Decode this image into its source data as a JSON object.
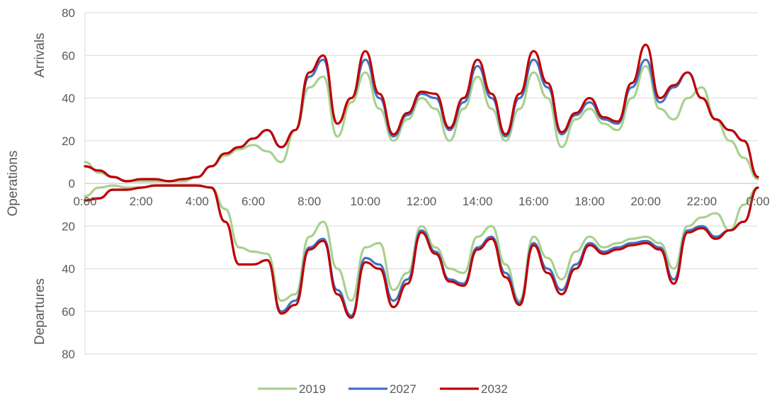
{
  "chart_data": {
    "type": "line",
    "title": "",
    "ylabel": "Operations",
    "ylabel_top": "Arrivals",
    "ylabel_bottom": "Departures",
    "xlabel": "",
    "x_ticks": [
      "0:00",
      "2:00",
      "4:00",
      "6:00",
      "8:00",
      "10:00",
      "12:00",
      "14:00",
      "16:00",
      "18:00",
      "20:00",
      "22:00",
      "0:00"
    ],
    "y_ticks": [
      "80",
      "60",
      "40",
      "20",
      "0",
      "20",
      "40",
      "60",
      "80"
    ],
    "ylim": [
      -80,
      80
    ],
    "x_hours": [
      0,
      0.5,
      1,
      1.5,
      2,
      2.5,
      3,
      3.5,
      4,
      4.5,
      5,
      5.5,
      6,
      6.5,
      7,
      7.5,
      8,
      8.5,
      9,
      9.5,
      10,
      10.5,
      11,
      11.5,
      12,
      12.5,
      13,
      13.5,
      14,
      14.5,
      15,
      15.5,
      16,
      16.5,
      17,
      17.5,
      18,
      18.5,
      19,
      19.5,
      20,
      20.5,
      21,
      21.5,
      22,
      22.5,
      23,
      23.5,
      24
    ],
    "series": [
      {
        "name": "2019",
        "color": "#a9d18e",
        "arrivals": [
          10,
          5,
          3,
          1,
          1,
          1,
          1,
          1,
          3,
          8,
          13,
          16,
          18,
          15,
          10,
          25,
          45,
          50,
          22,
          38,
          52,
          35,
          20,
          30,
          40,
          35,
          20,
          35,
          50,
          35,
          20,
          35,
          52,
          40,
          17,
          30,
          35,
          28,
          25,
          40,
          55,
          35,
          30,
          40,
          45,
          30,
          20,
          12,
          2
        ],
        "departures": [
          -6,
          -2,
          -1,
          -2,
          -2,
          -1,
          -1,
          -1,
          -1,
          -2,
          -12,
          -30,
          -32,
          -33,
          -55,
          -52,
          -25,
          -18,
          -40,
          -55,
          -30,
          -28,
          -50,
          -42,
          -20,
          -30,
          -40,
          -42,
          -25,
          -20,
          -38,
          -55,
          -25,
          -35,
          -45,
          -32,
          -25,
          -30,
          -28,
          -26,
          -25,
          -28,
          -40,
          -20,
          -16,
          -14,
          -22,
          -10,
          -2
        ]
      },
      {
        "name": "2027",
        "color": "#4472c4",
        "arrivals": [
          8,
          6,
          3,
          1,
          2,
          2,
          1,
          2,
          3,
          8,
          14,
          17,
          21,
          25,
          17,
          25,
          50,
          58,
          28,
          40,
          58,
          40,
          22,
          32,
          42,
          40,
          25,
          38,
          55,
          40,
          22,
          40,
          58,
          45,
          23,
          32,
          38,
          30,
          28,
          45,
          58,
          38,
          45,
          52,
          40,
          30,
          25,
          20,
          3
        ],
        "departures": [
          -8,
          -7,
          -3,
          -3,
          -2,
          -1,
          -1,
          -1,
          -1,
          -2,
          -18,
          -38,
          -38,
          -36,
          -60,
          -55,
          -30,
          -26,
          -50,
          -62,
          -35,
          -38,
          -55,
          -45,
          -22,
          -32,
          -45,
          -47,
          -30,
          -25,
          -42,
          -56,
          -28,
          -40,
          -50,
          -38,
          -28,
          -32,
          -30,
          -28,
          -27,
          -30,
          -45,
          -22,
          -20,
          -25,
          -22,
          -18,
          -2
        ]
      },
      {
        "name": "2032",
        "color": "#c00000",
        "arrivals": [
          8,
          6,
          3,
          1,
          2,
          2,
          1,
          2,
          3,
          8,
          14,
          17,
          21,
          25,
          17,
          25,
          52,
          60,
          28,
          40,
          62,
          42,
          23,
          33,
          43,
          42,
          26,
          40,
          58,
          42,
          23,
          42,
          62,
          47,
          24,
          33,
          40,
          31,
          29,
          47,
          65,
          40,
          46,
          52,
          40,
          30,
          25,
          20,
          3
        ],
        "departures": [
          -8,
          -7,
          -3,
          -3,
          -2,
          -1,
          -1,
          -1,
          -1,
          -2,
          -18,
          -38,
          -38,
          -36,
          -61,
          -57,
          -31,
          -27,
          -52,
          -63,
          -37,
          -40,
          -58,
          -47,
          -23,
          -33,
          -46,
          -48,
          -31,
          -26,
          -44,
          -57,
          -29,
          -42,
          -52,
          -40,
          -29,
          -33,
          -31,
          -29,
          -28,
          -31,
          -47,
          -23,
          -21,
          -26,
          -22,
          -18,
          -2
        ]
      }
    ],
    "legend_position": "bottom",
    "grid": "horizontal"
  }
}
